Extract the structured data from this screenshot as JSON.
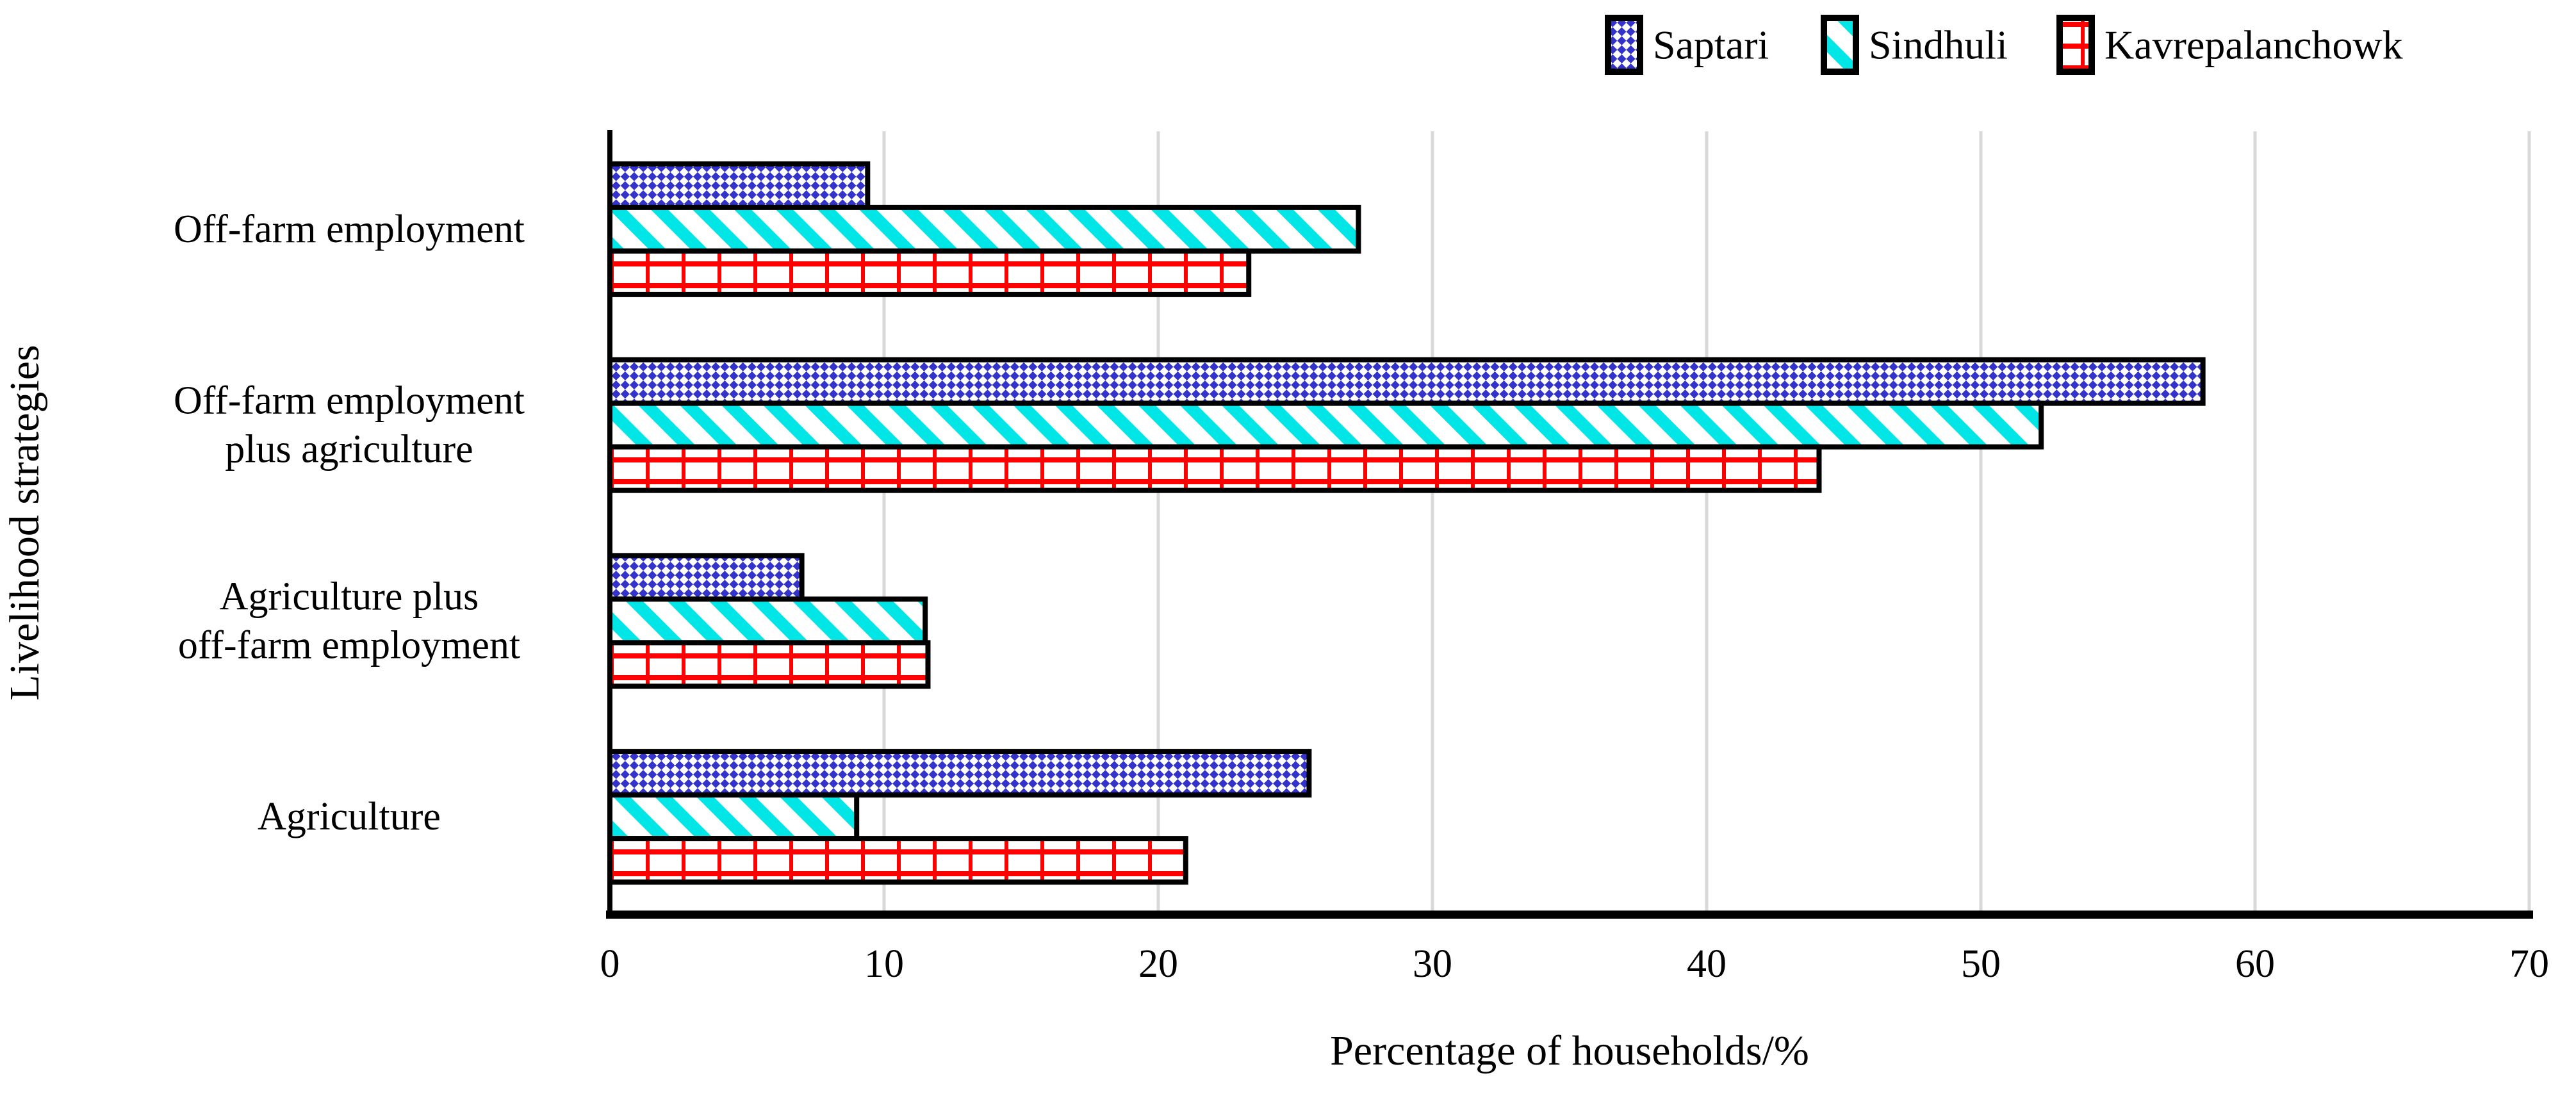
{
  "chart_data": {
    "type": "bar",
    "orientation": "horizontal",
    "title": "",
    "xlabel": "Percentage of households/%",
    "ylabel": "Livelihood strategies",
    "xlim": [
      0,
      70
    ],
    "xticks": [
      0,
      10,
      20,
      30,
      40,
      50,
      60,
      70
    ],
    "grid": "vertical",
    "gridline_color": "#D9D9D9",
    "bar_border_color": "#000000",
    "legend_position": "top-right",
    "categories": [
      "Off-farm employment",
      "Off-farm employment plus agriculture",
      "Agriculture plus off-farm employment",
      "Agriculture"
    ],
    "category_lines": [
      [
        "Off-farm employment"
      ],
      [
        "Off-farm employment",
        "plus agriculture"
      ],
      [
        "Agriculture plus",
        "off-farm employment"
      ],
      [
        "Agriculture"
      ]
    ],
    "series": [
      {
        "name": "Saptari",
        "pattern": "blue-diamond-check-pattern",
        "color": "#3333CC",
        "values": [
          9.4,
          58.1,
          7.0,
          25.5
        ]
      },
      {
        "name": "Sindhuli",
        "pattern": "cyan-diagonal-stripe-pattern",
        "color": "#00E6E6",
        "values": [
          27.3,
          52.2,
          11.5,
          9.0
        ]
      },
      {
        "name": "Kavrepalanchowk",
        "pattern": "red-grid-pattern",
        "color": "#FF0000",
        "values": [
          23.3,
          44.1,
          11.6,
          21.0
        ]
      }
    ]
  }
}
